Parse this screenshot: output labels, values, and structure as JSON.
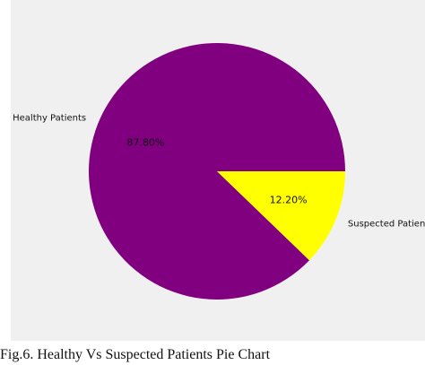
{
  "chart_data": {
    "type": "pie",
    "slices": [
      {
        "label": "Healthy Patients",
        "value": 87.8,
        "value_label": "87.80%",
        "color": "#800080"
      },
      {
        "label": "Suspected Patients",
        "value": 12.2,
        "value_label": "12.20%",
        "color": "#ffff00"
      }
    ],
    "background_color": "#f0f0f0",
    "start_angle": 0,
    "direction": "counterclockwise"
  },
  "caption": "Fig.6. Healthy Vs Suspected Patients Pie Chart"
}
